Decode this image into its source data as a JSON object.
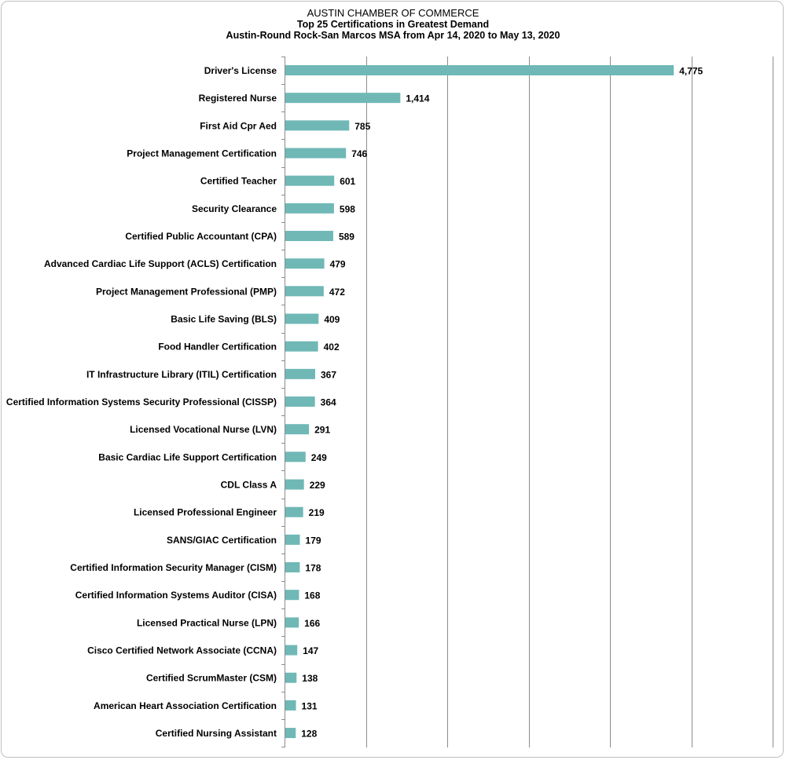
{
  "chart_data": {
    "type": "bar",
    "orientation": "horizontal",
    "title": "AUSTIN CHAMBER  OF COMMERCE",
    "subtitle": "Top 25 Certifications  in Greatest Demand",
    "subtitle2": "Austin-Round  Rock-San Marcos MSA from Apr 14, 2020 to May 13, 2020",
    "xlabel": "",
    "ylabel": "",
    "xlim": [
      0,
      6000
    ],
    "grid": "vertical",
    "legend": "none",
    "bar_color": "#6fb8b6",
    "categories": [
      "Driver's License",
      "Registered Nurse",
      "First Aid Cpr Aed",
      "Project Management Certification",
      "Certified Teacher",
      "Security Clearance",
      "Certified Public Accountant (CPA)",
      "Advanced Cardiac Life Support (ACLS) Certification",
      "Project Management Professional (PMP)",
      "Basic Life Saving (BLS)",
      "Food Handler Certification",
      "IT Infrastructure Library (ITIL) Certification",
      "Certified Information Systems Security Professional (CISSP)",
      "Licensed Vocational Nurse (LVN)",
      "Basic Cardiac Life Support Certification",
      "CDL Class A",
      "Licensed Professional Engineer",
      "SANS/GIAC Certification",
      "Certified Information Security Manager (CISM)",
      "Certified Information Systems Auditor (CISA)",
      "Licensed Practical Nurse (LPN)",
      "Cisco Certified Network Associate (CCNA)",
      "Certified ScrumMaster (CSM)",
      "American Heart Association Certification",
      "Certified Nursing Assistant"
    ],
    "values": [
      4775,
      1414,
      785,
      746,
      601,
      598,
      589,
      479,
      472,
      409,
      402,
      367,
      364,
      291,
      249,
      229,
      219,
      179,
      178,
      168,
      166,
      147,
      138,
      131,
      128
    ],
    "value_labels": [
      "4,775",
      "1,414",
      "785",
      "746",
      "601",
      "598",
      "589",
      "479",
      "472",
      "409",
      "402",
      "367",
      "364",
      "291",
      "249",
      "229",
      "219",
      "179",
      "178",
      "168",
      "166",
      "147",
      "138",
      "131",
      "128"
    ]
  }
}
